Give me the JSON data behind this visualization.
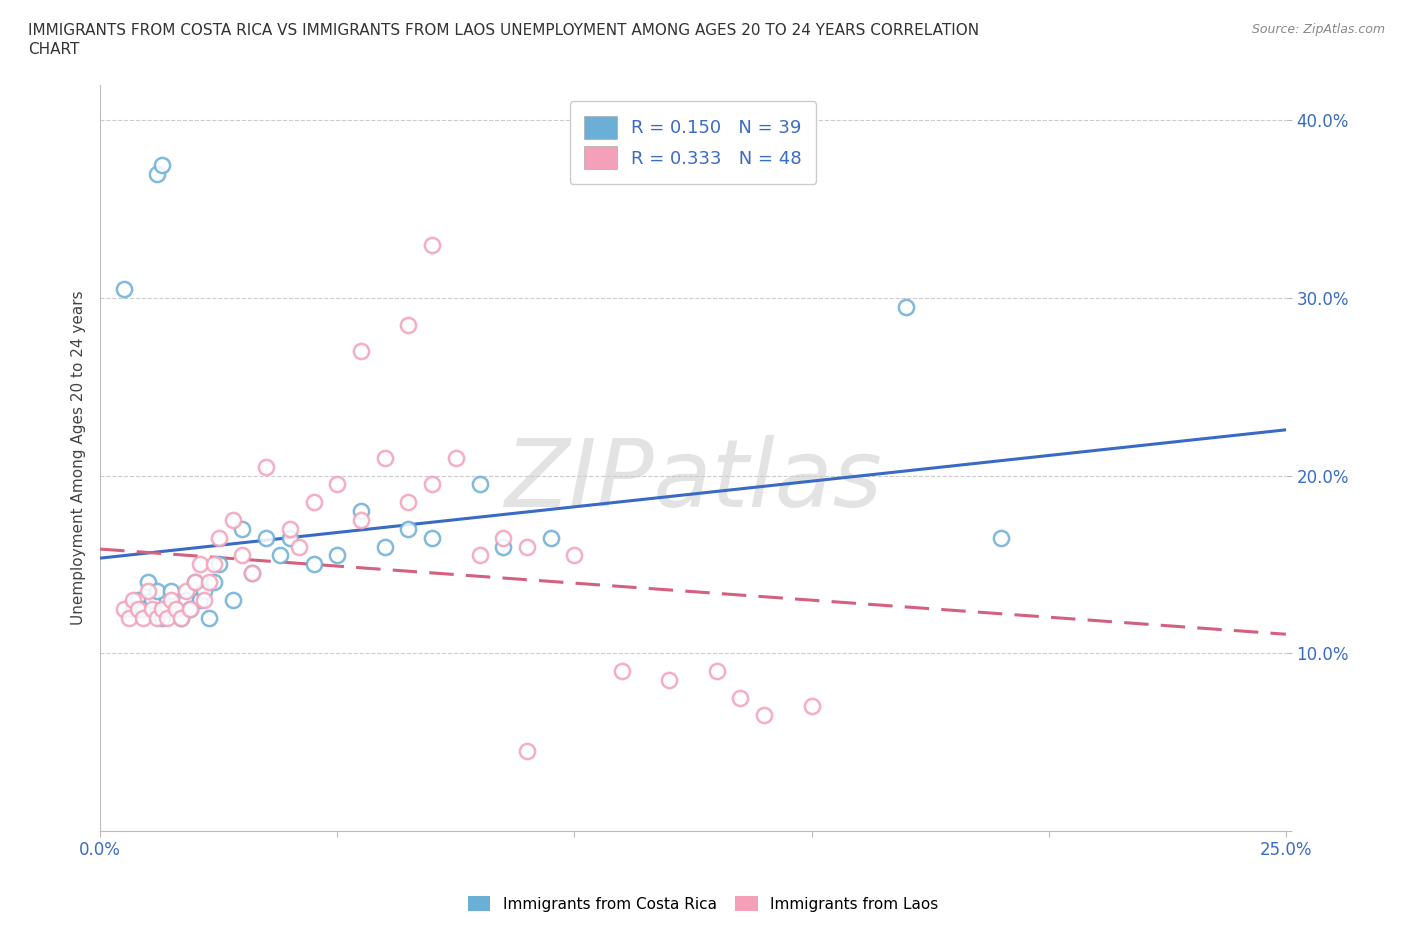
{
  "title_line1": "IMMIGRANTS FROM COSTA RICA VS IMMIGRANTS FROM LAOS UNEMPLOYMENT AMONG AGES 20 TO 24 YEARS CORRELATION",
  "title_line2": "CHART",
  "source_text": "Source: ZipAtlas.com",
  "ylabel": "Unemployment Among Ages 20 to 24 years",
  "xlim": [
    0.0,
    0.25
  ],
  "ylim": [
    0.0,
    0.42
  ],
  "xticks": [
    0.0,
    0.05,
    0.1,
    0.15,
    0.2,
    0.25
  ],
  "yticks": [
    0.0,
    0.1,
    0.2,
    0.3,
    0.4
  ],
  "xtick_labels": [
    "0.0%",
    "",
    "",
    "",
    "",
    "25.0%"
  ],
  "ytick_labels": [
    "",
    "10.0%",
    "20.0%",
    "30.0%",
    "40.0%"
  ],
  "costa_rica_color": "#6baed6",
  "laos_color": "#f4a0b8",
  "costa_rica_line_color": "#3a6bc4",
  "laos_line_color": "#d46080",
  "R_costa_rica": 0.15,
  "N_costa_rica": 39,
  "R_laos": 0.333,
  "N_laos": 48,
  "legend_label_1": "Immigrants from Costa Rica",
  "legend_label_2": "Immigrants from Laos",
  "watermark": "ZIPatlas",
  "background_color": "#ffffff",
  "grid_color": "#cccccc",
  "costa_rica_x": [
    0.012,
    0.013,
    0.005,
    0.007,
    0.008,
    0.009,
    0.01,
    0.011,
    0.012,
    0.013,
    0.014,
    0.015,
    0.016,
    0.017,
    0.018,
    0.019,
    0.02,
    0.021,
    0.022,
    0.023,
    0.024,
    0.025,
    0.028,
    0.03,
    0.032,
    0.035,
    0.038,
    0.04,
    0.045,
    0.05,
    0.055,
    0.06,
    0.065,
    0.07,
    0.08,
    0.085,
    0.095,
    0.19,
    0.17
  ],
  "costa_rica_y": [
    0.37,
    0.375,
    0.305,
    0.125,
    0.13,
    0.125,
    0.14,
    0.13,
    0.135,
    0.12,
    0.125,
    0.135,
    0.125,
    0.12,
    0.13,
    0.125,
    0.14,
    0.13,
    0.135,
    0.12,
    0.14,
    0.15,
    0.13,
    0.17,
    0.145,
    0.165,
    0.155,
    0.165,
    0.15,
    0.155,
    0.18,
    0.16,
    0.17,
    0.165,
    0.195,
    0.16,
    0.165,
    0.165,
    0.295
  ],
  "laos_x": [
    0.005,
    0.006,
    0.007,
    0.008,
    0.009,
    0.01,
    0.011,
    0.012,
    0.013,
    0.014,
    0.015,
    0.016,
    0.017,
    0.018,
    0.019,
    0.02,
    0.021,
    0.022,
    0.023,
    0.024,
    0.025,
    0.028,
    0.03,
    0.032,
    0.035,
    0.04,
    0.042,
    0.045,
    0.05,
    0.055,
    0.06,
    0.065,
    0.07,
    0.075,
    0.08,
    0.085,
    0.09,
    0.1,
    0.11,
    0.12,
    0.13,
    0.135,
    0.14,
    0.15,
    0.055,
    0.065,
    0.07,
    0.09
  ],
  "laos_y": [
    0.125,
    0.12,
    0.13,
    0.125,
    0.12,
    0.135,
    0.125,
    0.12,
    0.125,
    0.12,
    0.13,
    0.125,
    0.12,
    0.135,
    0.125,
    0.14,
    0.15,
    0.13,
    0.14,
    0.15,
    0.165,
    0.175,
    0.155,
    0.145,
    0.205,
    0.17,
    0.16,
    0.185,
    0.195,
    0.175,
    0.21,
    0.185,
    0.195,
    0.21,
    0.155,
    0.165,
    0.16,
    0.155,
    0.09,
    0.085,
    0.09,
    0.075,
    0.065,
    0.07,
    0.27,
    0.285,
    0.33,
    0.045
  ]
}
